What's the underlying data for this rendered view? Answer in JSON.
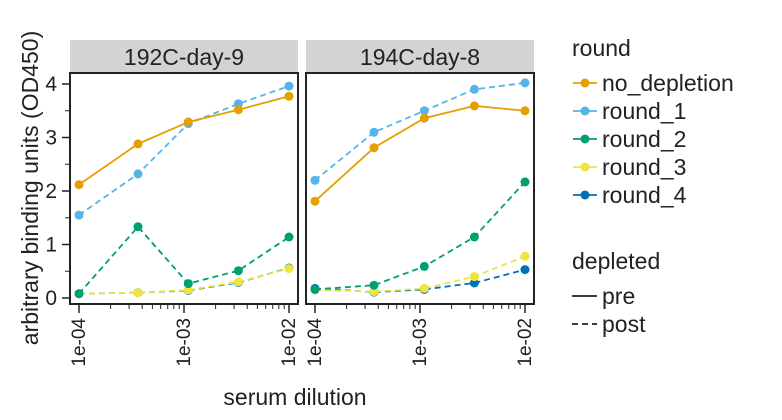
{
  "chart_data": {
    "type": "line",
    "xlabel": "serum dilution",
    "ylabel": "arbitrary binding units (OD450)",
    "x_scale": "log",
    "xlim": [
      0.0001,
      0.01
    ],
    "ylim": [
      0,
      4.2
    ],
    "x_ticks": [
      {
        "value": 0.0001,
        "label": "1e-04"
      },
      {
        "value": 0.001,
        "label": "1e-03"
      },
      {
        "value": 0.01,
        "label": "1e-02"
      }
    ],
    "y_ticks": [
      {
        "value": 0,
        "label": "0"
      },
      {
        "value": 1,
        "label": "1"
      },
      {
        "value": 2,
        "label": "2"
      },
      {
        "value": 3,
        "label": "3"
      },
      {
        "value": 4,
        "label": "4"
      }
    ],
    "legend": {
      "placement": "right",
      "color_title": "round",
      "linetype_title": "depleted",
      "color_entries": [
        {
          "label": "no_depletion",
          "color": "#E69F00"
        },
        {
          "label": "round_1",
          "color": "#56B4E9"
        },
        {
          "label": "round_2",
          "color": "#009E73"
        },
        {
          "label": "round_3",
          "color": "#F0E442"
        },
        {
          "label": "round_4",
          "color": "#0072B2"
        }
      ],
      "linetype_entries": [
        {
          "label": "pre",
          "dash": "solid"
        },
        {
          "label": "post",
          "dash": "dashed"
        }
      ]
    },
    "x": [
      0.0001,
      0.000365,
      0.0011,
      0.0033,
      0.01
    ],
    "facets": [
      {
        "title": "192C-day-9",
        "series": [
          {
            "name": "round_4",
            "color": "#0072B2",
            "dash": "dashed",
            "values": [
              0.08,
              0.1,
              0.14,
              0.29,
              0.56
            ]
          },
          {
            "name": "round_3",
            "color": "#F0E442",
            "dash": "dashed",
            "values": [
              0.08,
              0.1,
              0.15,
              0.3,
              0.55
            ]
          },
          {
            "name": "round_2",
            "color": "#009E73",
            "dash": "dashed",
            "values": [
              0.08,
              1.33,
              0.27,
              0.51,
              1.14
            ]
          },
          {
            "name": "round_1",
            "color": "#56B4E9",
            "dash": "dashed",
            "values": [
              1.55,
              2.32,
              3.26,
              3.63,
              3.96
            ]
          },
          {
            "name": "no_depletion",
            "color": "#E69F00",
            "dash": "solid",
            "values": [
              2.12,
              2.88,
              3.29,
              3.52,
              3.77
            ]
          }
        ]
      },
      {
        "title": "194C-day-8",
        "series": [
          {
            "name": "round_4",
            "color": "#0072B2",
            "dash": "dashed",
            "values": [
              0.18,
              0.11,
              0.16,
              0.28,
              0.53
            ]
          },
          {
            "name": "round_3",
            "color": "#F0E442",
            "dash": "dashed",
            "values": [
              0.15,
              0.12,
              0.18,
              0.4,
              0.78
            ]
          },
          {
            "name": "round_2",
            "color": "#009E73",
            "dash": "dashed",
            "values": [
              0.16,
              0.24,
              0.59,
              1.14,
              2.17
            ]
          },
          {
            "name": "round_1",
            "color": "#56B4E9",
            "dash": "dashed",
            "values": [
              2.2,
              3.1,
              3.5,
              3.9,
              4.02
            ]
          },
          {
            "name": "no_depletion",
            "color": "#E69F00",
            "dash": "solid",
            "values": [
              1.81,
              2.81,
              3.36,
              3.59,
              3.5
            ]
          }
        ]
      }
    ]
  }
}
